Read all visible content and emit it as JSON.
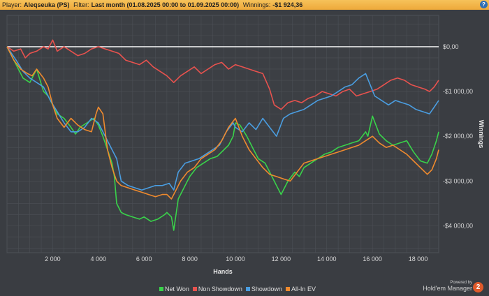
{
  "header": {
    "player_label": "Player:",
    "player_value": "Aleqseuka (PS)",
    "filter_label": "Filter:",
    "filter_value": "Last month (01.08.2025 00:00 to 01.09.2025 00:00)",
    "winnings_label": "Winnings:",
    "winnings_value": "-$1 924,36",
    "help_icon": "?"
  },
  "footer": {
    "powered_by": "Powered by",
    "product": "Hold'em Manager",
    "logo_number": "2"
  },
  "chart_data": {
    "type": "line",
    "title": "",
    "xlabel": "Hands",
    "ylabel": "Winnings",
    "xlim": [
      0,
      18900
    ],
    "ylim": [
      -4600,
      700
    ],
    "x_ticks": [
      2000,
      4000,
      6000,
      8000,
      10000,
      12000,
      14000,
      16000,
      18000
    ],
    "x_tick_labels": [
      "2 000",
      "4 000",
      "6 000",
      "8 000",
      "10 000",
      "12 000",
      "14 000",
      "16 000",
      "18 000"
    ],
    "y_ticks": [
      0,
      -1000,
      -2000,
      -3000,
      -4000
    ],
    "y_tick_labels": [
      "$0,00",
      "-$1 000,00",
      "-$2 000,00",
      "-$3 000,00",
      "-$4 000,00"
    ],
    "grid": true,
    "legend_position": "bottom",
    "series": [
      {
        "name": "Net Won",
        "color": "#39d24a",
        "x": [
          0,
          400,
          700,
          1000,
          1300,
          1600,
          1800,
          2000,
          2200,
          2500,
          2800,
          3000,
          3200,
          3500,
          3800,
          4000,
          4200,
          4400,
          4600,
          4700,
          4800,
          5000,
          5200,
          5500,
          5800,
          6000,
          6300,
          6600,
          6900,
          7000,
          7200,
          7300,
          7500,
          7800,
          8000,
          8300,
          8600,
          8900,
          9200,
          9500,
          9700,
          9900,
          10000,
          10200,
          10500,
          10800,
          11000,
          11300,
          11600,
          11800,
          12000,
          12300,
          12600,
          12800,
          13000,
          13300,
          13600,
          13900,
          14200,
          14500,
          14800,
          15100,
          15400,
          15700,
          15800,
          16000,
          16300,
          16600,
          16900,
          17200,
          17500,
          17800,
          18100,
          18400,
          18600,
          18800,
          18900
        ],
        "y": [
          0,
          -400,
          -700,
          -800,
          -500,
          -1000,
          -1100,
          -1300,
          -1500,
          -1600,
          -1800,
          -1950,
          -1800,
          -1700,
          -1600,
          -1750,
          -2000,
          -2300,
          -2600,
          -2900,
          -3500,
          -3700,
          -3750,
          -3800,
          -3850,
          -3800,
          -3900,
          -3850,
          -3750,
          -3700,
          -3800,
          -4100,
          -3400,
          -3100,
          -2900,
          -2700,
          -2600,
          -2500,
          -2450,
          -2300,
          -2200,
          -2000,
          -1700,
          -1750,
          -2000,
          -2300,
          -2500,
          -2600,
          -2900,
          -3100,
          -3300,
          -3000,
          -2800,
          -2900,
          -2700,
          -2600,
          -2500,
          -2400,
          -2350,
          -2250,
          -2200,
          -2150,
          -2100,
          -1900,
          -2000,
          -1550,
          -1950,
          -2100,
          -2200,
          -2150,
          -2100,
          -2350,
          -2550,
          -2600,
          -2400,
          -2100,
          -1900
        ]
      },
      {
        "name": "Non Showdown",
        "color": "#e8524e",
        "x": [
          0,
          300,
          600,
          800,
          1000,
          1300,
          1600,
          1800,
          2000,
          2200,
          2500,
          2800,
          3100,
          3400,
          3700,
          4000,
          4300,
          4600,
          4900,
          5200,
          5500,
          5800,
          6100,
          6400,
          6700,
          7000,
          7300,
          7600,
          7900,
          8200,
          8500,
          8800,
          9100,
          9400,
          9700,
          10000,
          10300,
          10600,
          10900,
          11200,
          11500,
          11700,
          12000,
          12300,
          12600,
          12900,
          13200,
          13500,
          13800,
          14100,
          14400,
          14700,
          15000,
          15300,
          15600,
          15900,
          16200,
          16500,
          16800,
          17100,
          17400,
          17700,
          18000,
          18300,
          18500,
          18700,
          18900
        ],
        "y": [
          0,
          -100,
          -50,
          -250,
          -150,
          -100,
          0,
          -50,
          150,
          -100,
          0,
          -100,
          -200,
          -150,
          -50,
          0,
          -50,
          -100,
          -150,
          -300,
          -350,
          -400,
          -300,
          -450,
          -550,
          -650,
          -800,
          -650,
          -550,
          -450,
          -600,
          -500,
          -400,
          -350,
          -500,
          -400,
          -450,
          -500,
          -550,
          -600,
          -950,
          -1300,
          -1400,
          -1250,
          -1200,
          -1250,
          -1150,
          -1100,
          -1000,
          -1050,
          -1100,
          -1000,
          -950,
          -1100,
          -1050,
          -1000,
          -950,
          -850,
          -750,
          -700,
          -750,
          -850,
          -900,
          -950,
          -1000,
          -900,
          -750
        ]
      },
      {
        "name": "Showdown",
        "color": "#4a9de0",
        "x": [
          0,
          400,
          700,
          1000,
          1300,
          1600,
          1900,
          2200,
          2500,
          2800,
          3100,
          3400,
          3700,
          4000,
          4200,
          4400,
          4600,
          4800,
          5000,
          5300,
          5600,
          5900,
          6200,
          6500,
          6800,
          7100,
          7300,
          7500,
          7800,
          8100,
          8400,
          8700,
          9000,
          9300,
          9600,
          9900,
          10000,
          10300,
          10600,
          10900,
          11200,
          11500,
          11800,
          12100,
          12400,
          12700,
          13000,
          13300,
          13600,
          13900,
          14200,
          14500,
          14800,
          15100,
          15400,
          15700,
          15900,
          16100,
          16400,
          16700,
          17000,
          17300,
          17600,
          17900,
          18200,
          18500,
          18700,
          18900
        ],
        "y": [
          0,
          -300,
          -550,
          -700,
          -800,
          -900,
          -1200,
          -1450,
          -1700,
          -1900,
          -1900,
          -1800,
          -1600,
          -1700,
          -1900,
          -2100,
          -2300,
          -2500,
          -3000,
          -3100,
          -3150,
          -3200,
          -3150,
          -3100,
          -3100,
          -3050,
          -3200,
          -2800,
          -2600,
          -2550,
          -2500,
          -2400,
          -2300,
          -2200,
          -1900,
          -1700,
          -1800,
          -1900,
          -1700,
          -1850,
          -1600,
          -1800,
          -2000,
          -1600,
          -1500,
          -1450,
          -1400,
          -1300,
          -1200,
          -1150,
          -1100,
          -1000,
          -900,
          -850,
          -700,
          -600,
          -850,
          -1100,
          -1200,
          -1300,
          -1200,
          -1250,
          -1300,
          -1400,
          -1450,
          -1500,
          -1350,
          -1200
        ]
      },
      {
        "name": "All-In EV",
        "color": "#ef8a2e",
        "x": [
          0,
          300,
          600,
          900,
          1100,
          1300,
          1600,
          1800,
          2000,
          2200,
          2500,
          2800,
          3100,
          3400,
          3700,
          3900,
          4000,
          4200,
          4400,
          4600,
          4800,
          5000,
          5300,
          5600,
          5900,
          6200,
          6500,
          6800,
          7000,
          7200,
          7400,
          7600,
          7900,
          8200,
          8500,
          8800,
          9100,
          9400,
          9700,
          10000,
          10300,
          10600,
          10900,
          11200,
          11500,
          11800,
          12100,
          12400,
          12700,
          13000,
          13300,
          13600,
          13900,
          14200,
          14500,
          14800,
          15100,
          15400,
          15700,
          16000,
          16300,
          16600,
          16900,
          17200,
          17500,
          17800,
          18100,
          18400,
          18600,
          18800,
          18900
        ],
        "y": [
          0,
          -300,
          -500,
          -600,
          -650,
          -500,
          -700,
          -900,
          -1300,
          -1600,
          -1800,
          -1600,
          -1750,
          -1850,
          -1900,
          -1500,
          -1350,
          -1500,
          -2300,
          -2700,
          -3000,
          -3100,
          -3150,
          -3200,
          -3250,
          -3300,
          -3350,
          -3300,
          -3300,
          -3400,
          -3200,
          -3000,
          -2800,
          -2700,
          -2500,
          -2400,
          -2300,
          -2100,
          -1800,
          -1600,
          -2000,
          -2300,
          -2500,
          -2700,
          -2850,
          -2900,
          -2950,
          -3000,
          -2800,
          -2600,
          -2550,
          -2500,
          -2450,
          -2400,
          -2350,
          -2300,
          -2250,
          -2200,
          -2100,
          -2000,
          -2150,
          -2250,
          -2200,
          -2300,
          -2400,
          -2550,
          -2700,
          -2850,
          -2750,
          -2500,
          -2300
        ]
      }
    ]
  }
}
